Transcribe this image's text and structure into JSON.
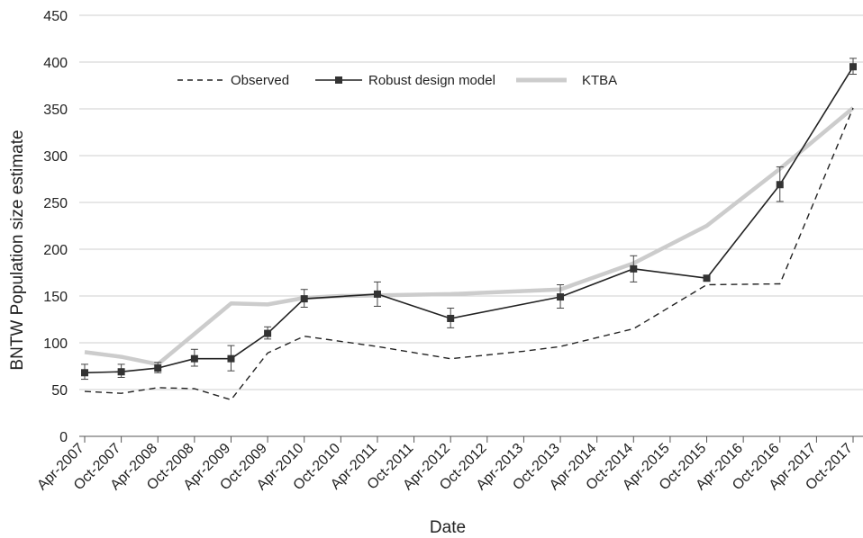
{
  "chart_data": {
    "type": "line",
    "title": "",
    "xlabel": "Date",
    "ylabel": "BNTW Population size estimate",
    "ylim": [
      0,
      450
    ],
    "yticks": [
      0,
      50,
      100,
      150,
      200,
      250,
      300,
      350,
      400,
      450
    ],
    "xlim": [
      "2007-04",
      "2017-10"
    ],
    "xticks": [
      "Apr-2007",
      "Oct-2007",
      "Apr-2008",
      "Oct-2008",
      "Apr-2009",
      "Oct-2009",
      "Apr-2010",
      "Oct-2010",
      "Apr-2011",
      "Oct-2011",
      "Apr-2012",
      "Oct-2012",
      "Apr-2013",
      "Oct-2013",
      "Apr-2014",
      "Oct-2014",
      "Apr-2015",
      "Oct-2015",
      "Apr-2016",
      "Oct-2016",
      "Apr-2017",
      "Oct-2017"
    ],
    "grid": "horizontal",
    "legend_position": "top",
    "series": [
      {
        "name": "Observed",
        "style": "dashed",
        "color": "#222222",
        "points": [
          {
            "x": "2007-04",
            "y": 48
          },
          {
            "x": "2007-10",
            "y": 46
          },
          {
            "x": "2008-04",
            "y": 52
          },
          {
            "x": "2008-10",
            "y": 51
          },
          {
            "x": "2009-04",
            "y": 39
          },
          {
            "x": "2009-10",
            "y": 89
          },
          {
            "x": "2010-04",
            "y": 107
          },
          {
            "x": "2011-04",
            "y": 96
          },
          {
            "x": "2012-04",
            "y": 83
          },
          {
            "x": "2013-04",
            "y": 91
          },
          {
            "x": "2013-10",
            "y": 96
          },
          {
            "x": "2014-10",
            "y": 115
          },
          {
            "x": "2015-10",
            "y": 162
          },
          {
            "x": "2016-10",
            "y": 163
          },
          {
            "x": "2017-10",
            "y": 351
          }
        ]
      },
      {
        "name": "Robust design model",
        "style": "solid-markers",
        "color": "#222222",
        "points": [
          {
            "x": "2007-04",
            "y": 68,
            "err_low": 61,
            "err_high": 77
          },
          {
            "x": "2007-10",
            "y": 69,
            "err_low": 63,
            "err_high": 77
          },
          {
            "x": "2008-04",
            "y": 73,
            "err_low": 68,
            "err_high": 79
          },
          {
            "x": "2008-10",
            "y": 83,
            "err_low": 75,
            "err_high": 93
          },
          {
            "x": "2009-04",
            "y": 83,
            "err_low": 70,
            "err_high": 97
          },
          {
            "x": "2009-10",
            "y": 110,
            "err_low": 104,
            "err_high": 117
          },
          {
            "x": "2010-04",
            "y": 147,
            "err_low": 138,
            "err_high": 157
          },
          {
            "x": "2011-04",
            "y": 152,
            "err_low": 139,
            "err_high": 165
          },
          {
            "x": "2012-04",
            "y": 126,
            "err_low": 116,
            "err_high": 137
          },
          {
            "x": "2013-10",
            "y": 149,
            "err_low": 137,
            "err_high": 162
          },
          {
            "x": "2014-10",
            "y": 179,
            "err_low": 165,
            "err_high": 193
          },
          {
            "x": "2015-10",
            "y": 169,
            "err_low": 166,
            "err_high": 172
          },
          {
            "x": "2016-10",
            "y": 269,
            "err_low": 251,
            "err_high": 288
          },
          {
            "x": "2017-10",
            "y": 395,
            "err_low": 387,
            "err_high": 404
          }
        ]
      },
      {
        "name": "KTBA",
        "style": "thick",
        "color": "#cccccc",
        "points": [
          {
            "x": "2007-04",
            "y": 90
          },
          {
            "x": "2007-10",
            "y": 85
          },
          {
            "x": "2008-04",
            "y": 77
          },
          {
            "x": "2009-04",
            "y": 142
          },
          {
            "x": "2009-10",
            "y": 141
          },
          {
            "x": "2010-04",
            "y": 148
          },
          {
            "x": "2010-10",
            "y": 150
          },
          {
            "x": "2012-04",
            "y": 152
          },
          {
            "x": "2013-10",
            "y": 157
          },
          {
            "x": "2014-10",
            "y": 185
          },
          {
            "x": "2015-10",
            "y": 225
          },
          {
            "x": "2016-10",
            "y": 286
          },
          {
            "x": "2017-10",
            "y": 351
          }
        ]
      }
    ]
  }
}
